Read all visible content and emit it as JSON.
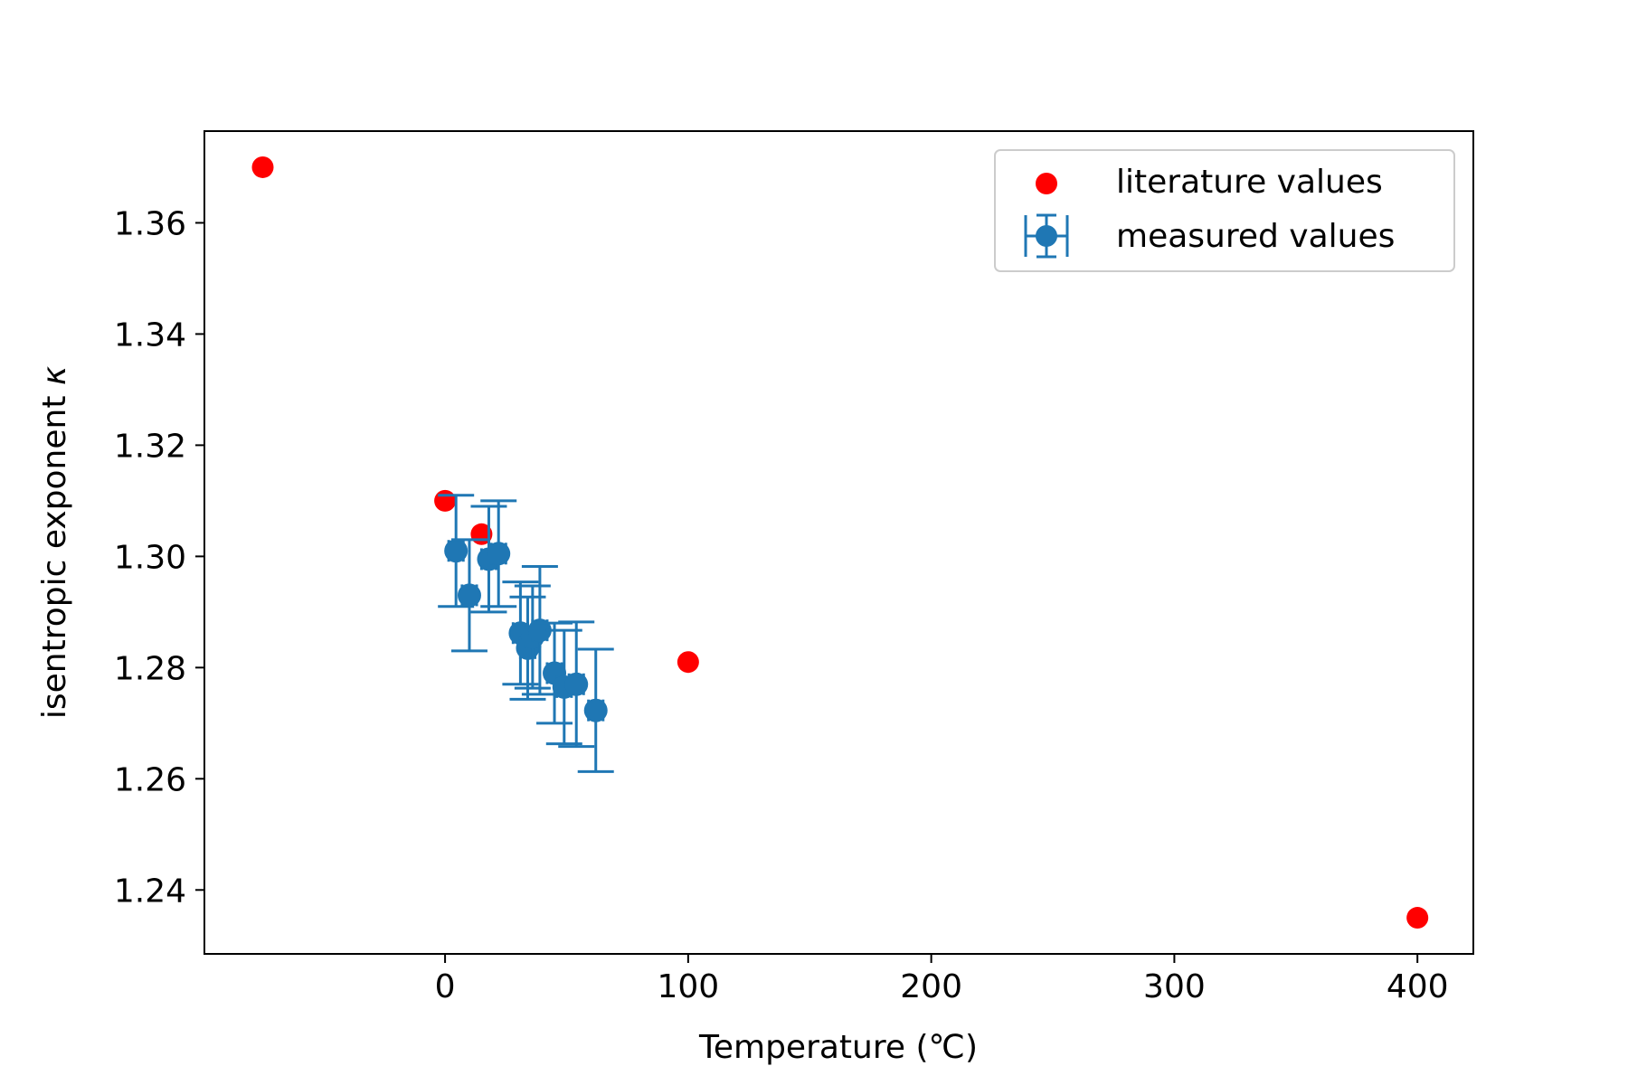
{
  "chart_data": {
    "type": "scatter",
    "xlabel": "Temperature (℃)",
    "ylabel_text": "isentropic exponent ",
    "ylabel_symbol": "κ",
    "xlim": [
      -99,
      423
    ],
    "ylim": [
      1.2285,
      1.3765
    ],
    "xticks": [
      0,
      100,
      200,
      300,
      400
    ],
    "xtick_labels": [
      "0",
      "100",
      "200",
      "300",
      "400"
    ],
    "yticks": [
      1.24,
      1.26,
      1.28,
      1.3,
      1.32,
      1.34,
      1.36
    ],
    "ytick_labels": [
      "1.24",
      "1.26",
      "1.28",
      "1.30",
      "1.32",
      "1.34",
      "1.36"
    ],
    "grid": false,
    "legend_position": "upper right",
    "series": [
      {
        "name": "literature values",
        "kind": "scatter",
        "color": "#ff0000",
        "points": [
          {
            "x": -75,
            "y": 1.37
          },
          {
            "x": 0,
            "y": 1.31
          },
          {
            "x": 15,
            "y": 1.304
          },
          {
            "x": 100,
            "y": 1.281
          },
          {
            "x": 400,
            "y": 1.235
          }
        ]
      },
      {
        "name": "measured values",
        "kind": "errorbar",
        "color": "#1f77b4",
        "points": [
          {
            "x": 4.5,
            "y": 1.301,
            "yerr": 0.01,
            "xerr": 3.0
          },
          {
            "x": 10,
            "y": 1.293,
            "yerr": 0.01,
            "xerr": 3.0
          },
          {
            "x": 18,
            "y": 1.2995,
            "yerr": 0.0095,
            "xerr": 3.0
          },
          {
            "x": 22,
            "y": 1.3005,
            "yerr": 0.0095,
            "xerr": 3.0
          },
          {
            "x": 31,
            "y": 1.2862,
            "yerr": 0.0092,
            "xerr": 3.0
          },
          {
            "x": 34,
            "y": 1.2835,
            "yerr": 0.0092,
            "xerr": 3.0
          },
          {
            "x": 36,
            "y": 1.2855,
            "yerr": 0.0092,
            "xerr": 3.0
          },
          {
            "x": 39,
            "y": 1.2867,
            "yerr": 0.0115,
            "xerr": 3.0
          },
          {
            "x": 45,
            "y": 1.279,
            "yerr": 0.009,
            "xerr": 3.0
          },
          {
            "x": 49,
            "y": 1.2765,
            "yerr": 0.0102,
            "xerr": 3.0
          },
          {
            "x": 54,
            "y": 1.277,
            "yerr": 0.0112,
            "xerr": 3.0
          },
          {
            "x": 62,
            "y": 1.2723,
            "yerr": 0.011,
            "xerr": 3.0
          }
        ]
      }
    ]
  }
}
